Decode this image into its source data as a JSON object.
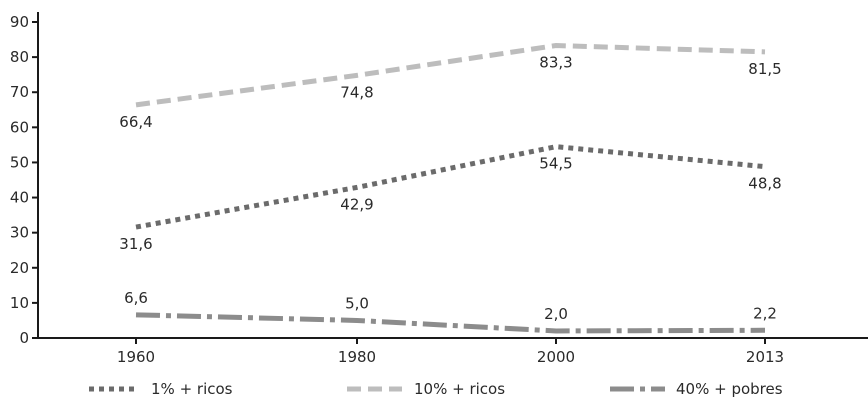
{
  "chart_data": {
    "type": "line",
    "title": "",
    "xlabel": "",
    "ylabel": "",
    "categories": [
      "1960",
      "1980",
      "2000",
      "2013"
    ],
    "ylim": [
      0,
      90
    ],
    "yticks": [
      0,
      10,
      20,
      30,
      40,
      50,
      60,
      70,
      80,
      90
    ],
    "grid": false,
    "legend_position": "bottom",
    "series": [
      {
        "name": "1% + ricos",
        "values": [
          31.6,
          42.9,
          54.5,
          48.8
        ],
        "labels": [
          "31,6",
          "42,9",
          "54,5",
          "48,8"
        ],
        "color": "#6b6b6b",
        "style": "dotted"
      },
      {
        "name": "10% + ricos",
        "values": [
          66.4,
          74.8,
          83.3,
          81.5
        ],
        "labels": [
          "66,4",
          "74,8",
          "83,3",
          "81,5"
        ],
        "color": "#bdbdbd",
        "style": "dashed"
      },
      {
        "name": "40% + pobres",
        "values": [
          6.6,
          5.0,
          2.0,
          2.2
        ],
        "labels": [
          "6,6",
          "5,0",
          "2,0",
          "2,2"
        ],
        "color": "#8c8c8c",
        "style": "dash-dot"
      }
    ]
  }
}
